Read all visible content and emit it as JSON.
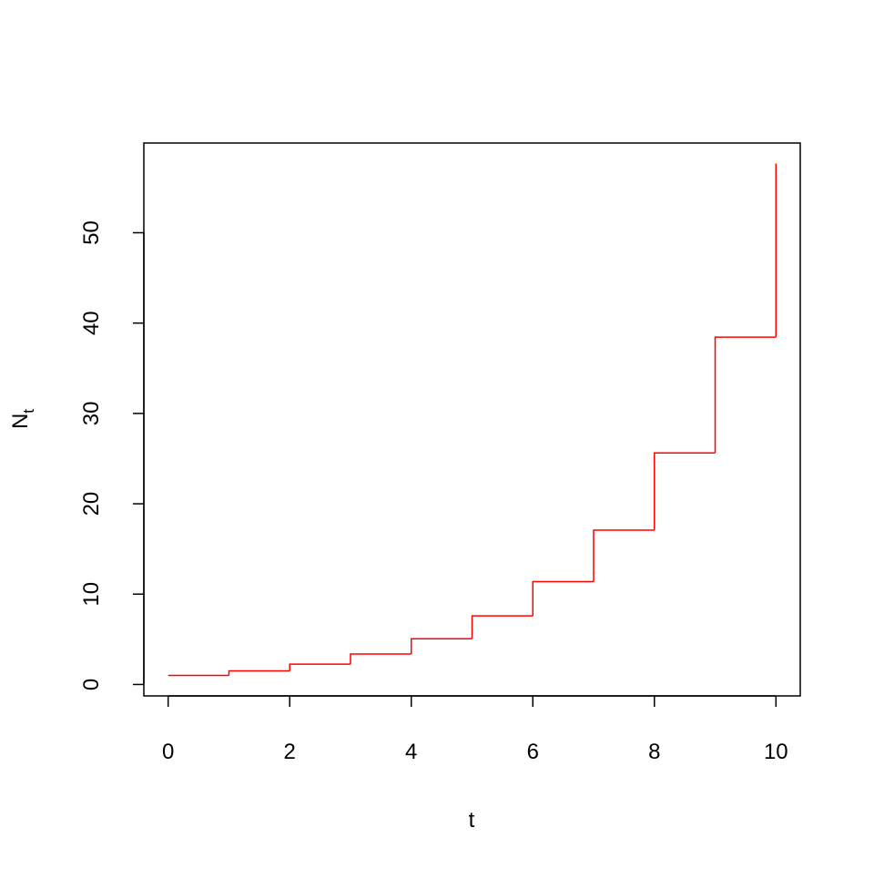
{
  "chart_data": {
    "type": "step",
    "xlabel": "t",
    "ylabel": {
      "text": "N",
      "subscript": "t"
    },
    "x": [
      0,
      1,
      2,
      3,
      4,
      5,
      6,
      7,
      8,
      9,
      10
    ],
    "values": [
      1,
      1.5,
      2.25,
      3.375,
      5.0625,
      7.59375,
      11.390625,
      17.0859375,
      25.62890625,
      38.443359375,
      57.6650390625
    ],
    "color": "#ff0000",
    "xlim": [
      -0.4,
      10.4
    ],
    "xticks": [
      0,
      2,
      4,
      6,
      8,
      10
    ],
    "ylim": [
      -1.2666,
      59.932
    ],
    "yticks": [
      0,
      10,
      20,
      30,
      40,
      50
    ]
  }
}
